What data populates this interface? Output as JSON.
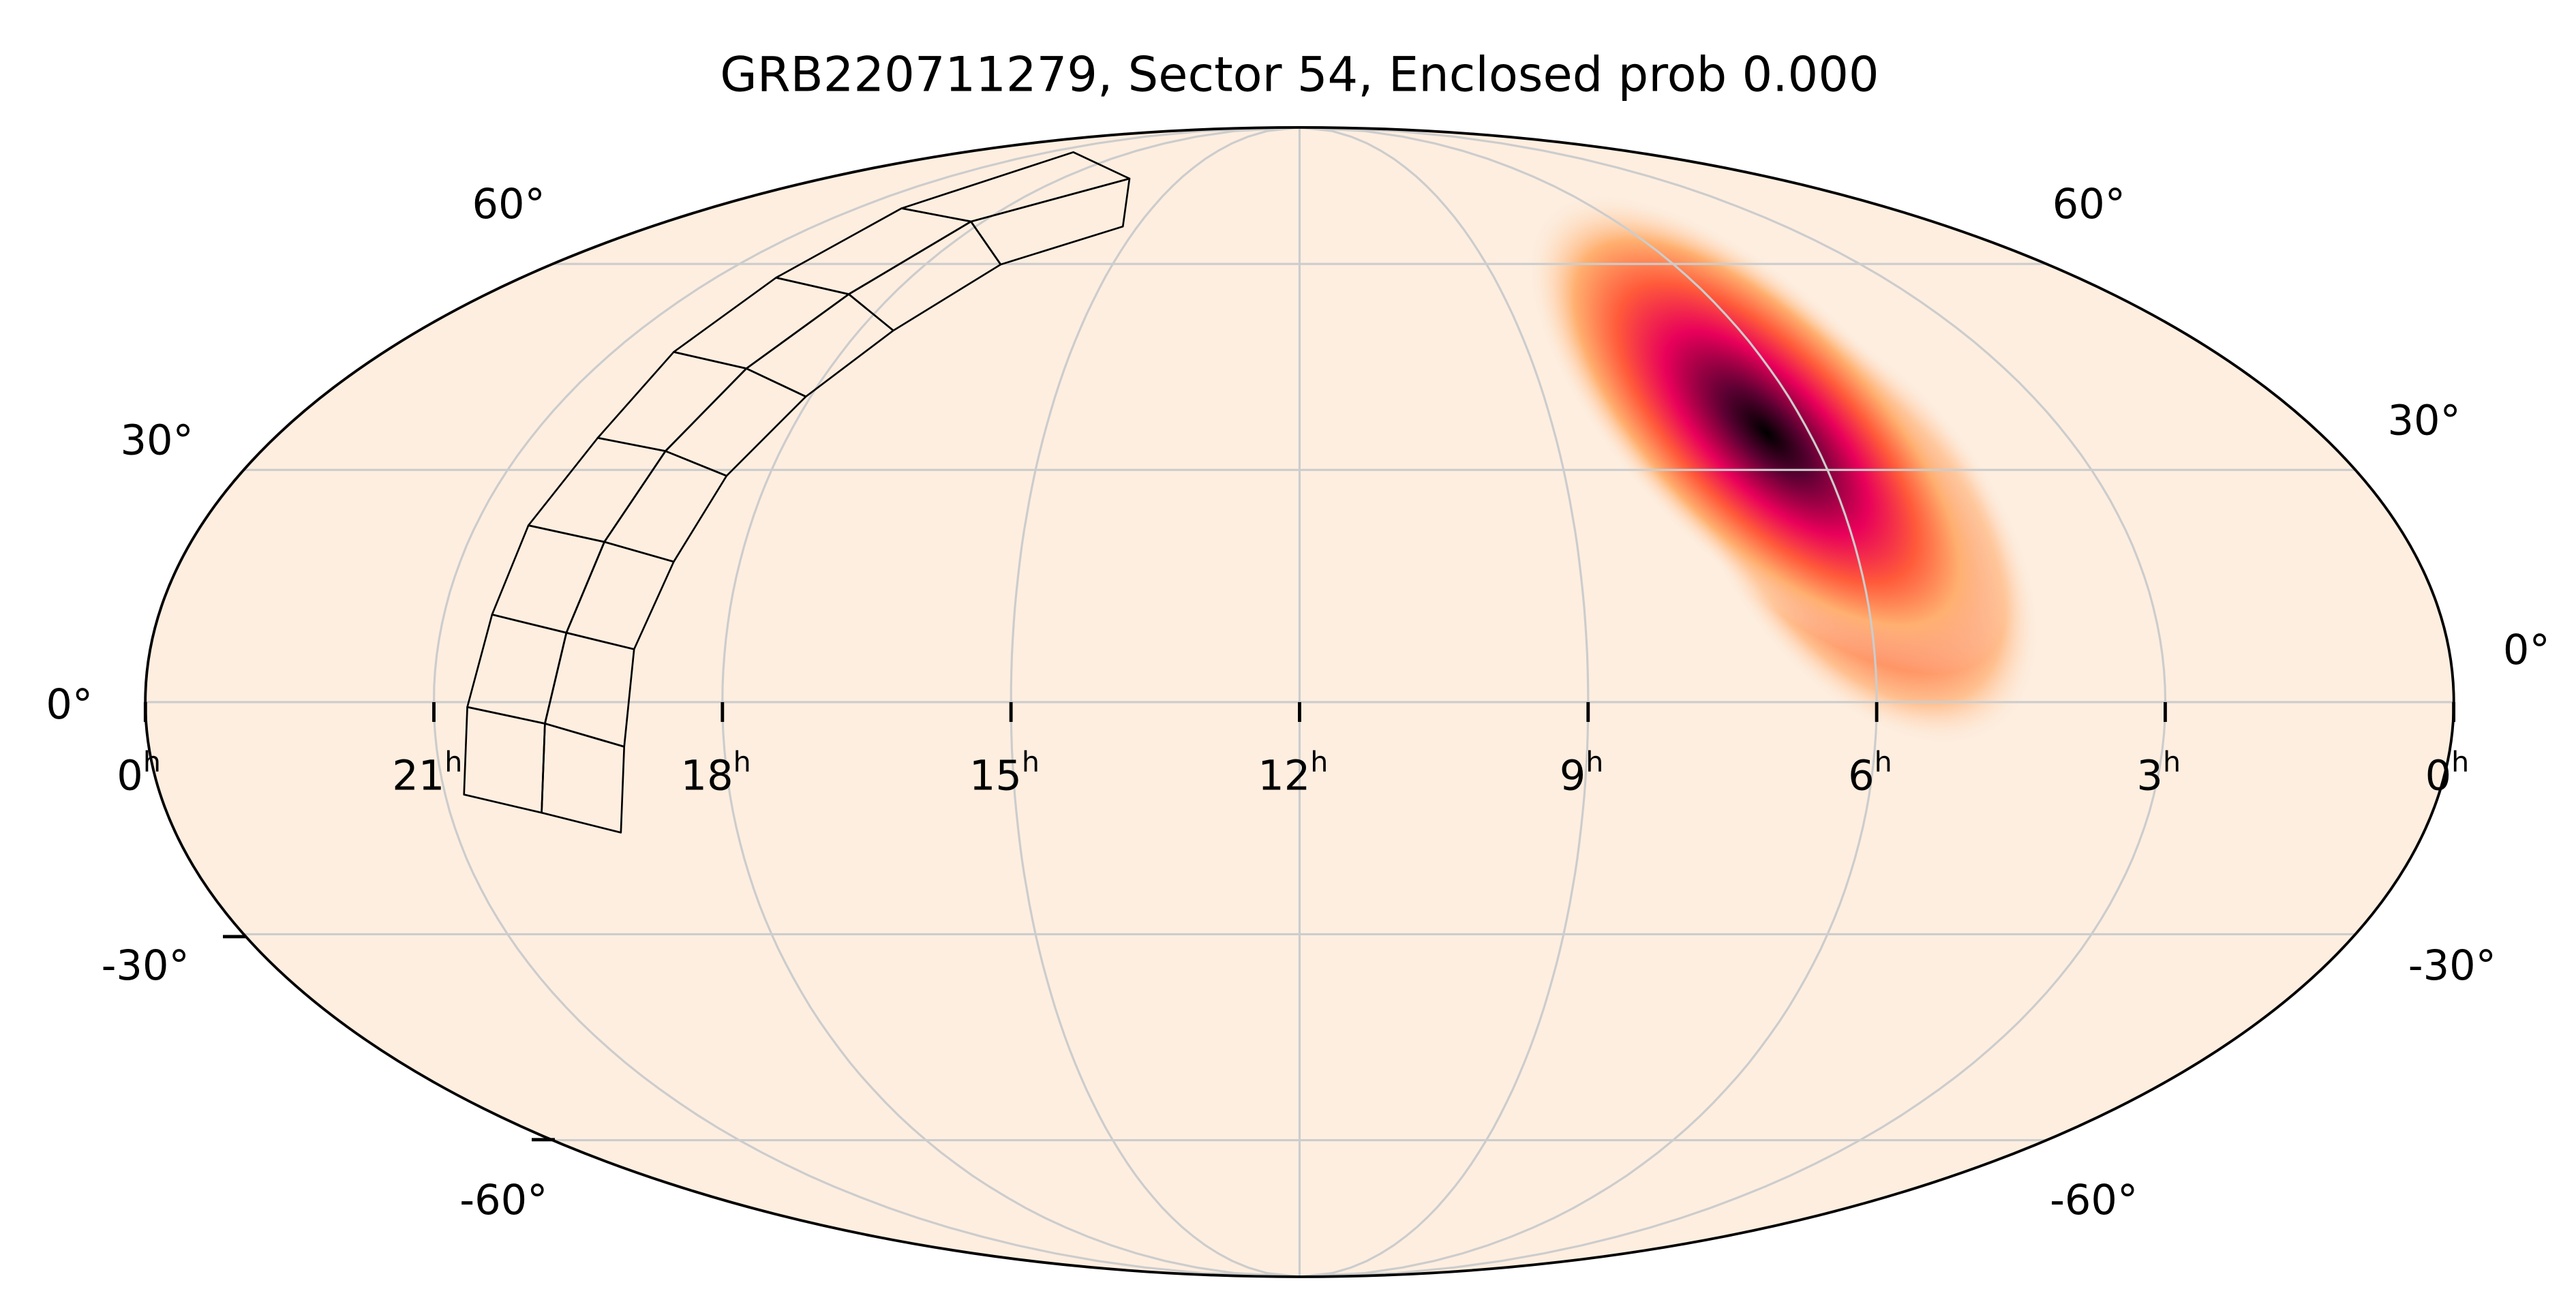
{
  "chart_data": {
    "type": "heatmap",
    "projection": "mollweide",
    "title": "GRB220711279, Sector 54, Enclosed prob 0.000",
    "ra_ticks": [
      "0h",
      "21h",
      "18h",
      "15h",
      "12h",
      "9h",
      "6h",
      "3h",
      "0h"
    ],
    "ra_tick_values_hours": [
      24,
      21,
      18,
      15,
      12,
      9,
      6,
      3,
      0
    ],
    "dec_ticks_left": [
      "60°",
      "30°",
      "0°",
      "-30°",
      "-60°"
    ],
    "dec_ticks_right": [
      "60°",
      "30°",
      "0°",
      "-30°",
      "-60°"
    ],
    "dec_tick_values": [
      60,
      30,
      0,
      -30,
      -60
    ],
    "grid": true,
    "probability_peak": {
      "ra_hours": 7.0,
      "dec_deg": 30
    },
    "colors": {
      "background": "#fdeee0",
      "grid": "#cccccc",
      "peak": "#000000",
      "mid": "#e0005a",
      "outer": "#ff8040"
    },
    "footprint": "TESS Sector 54 camera/CCD footprint"
  }
}
